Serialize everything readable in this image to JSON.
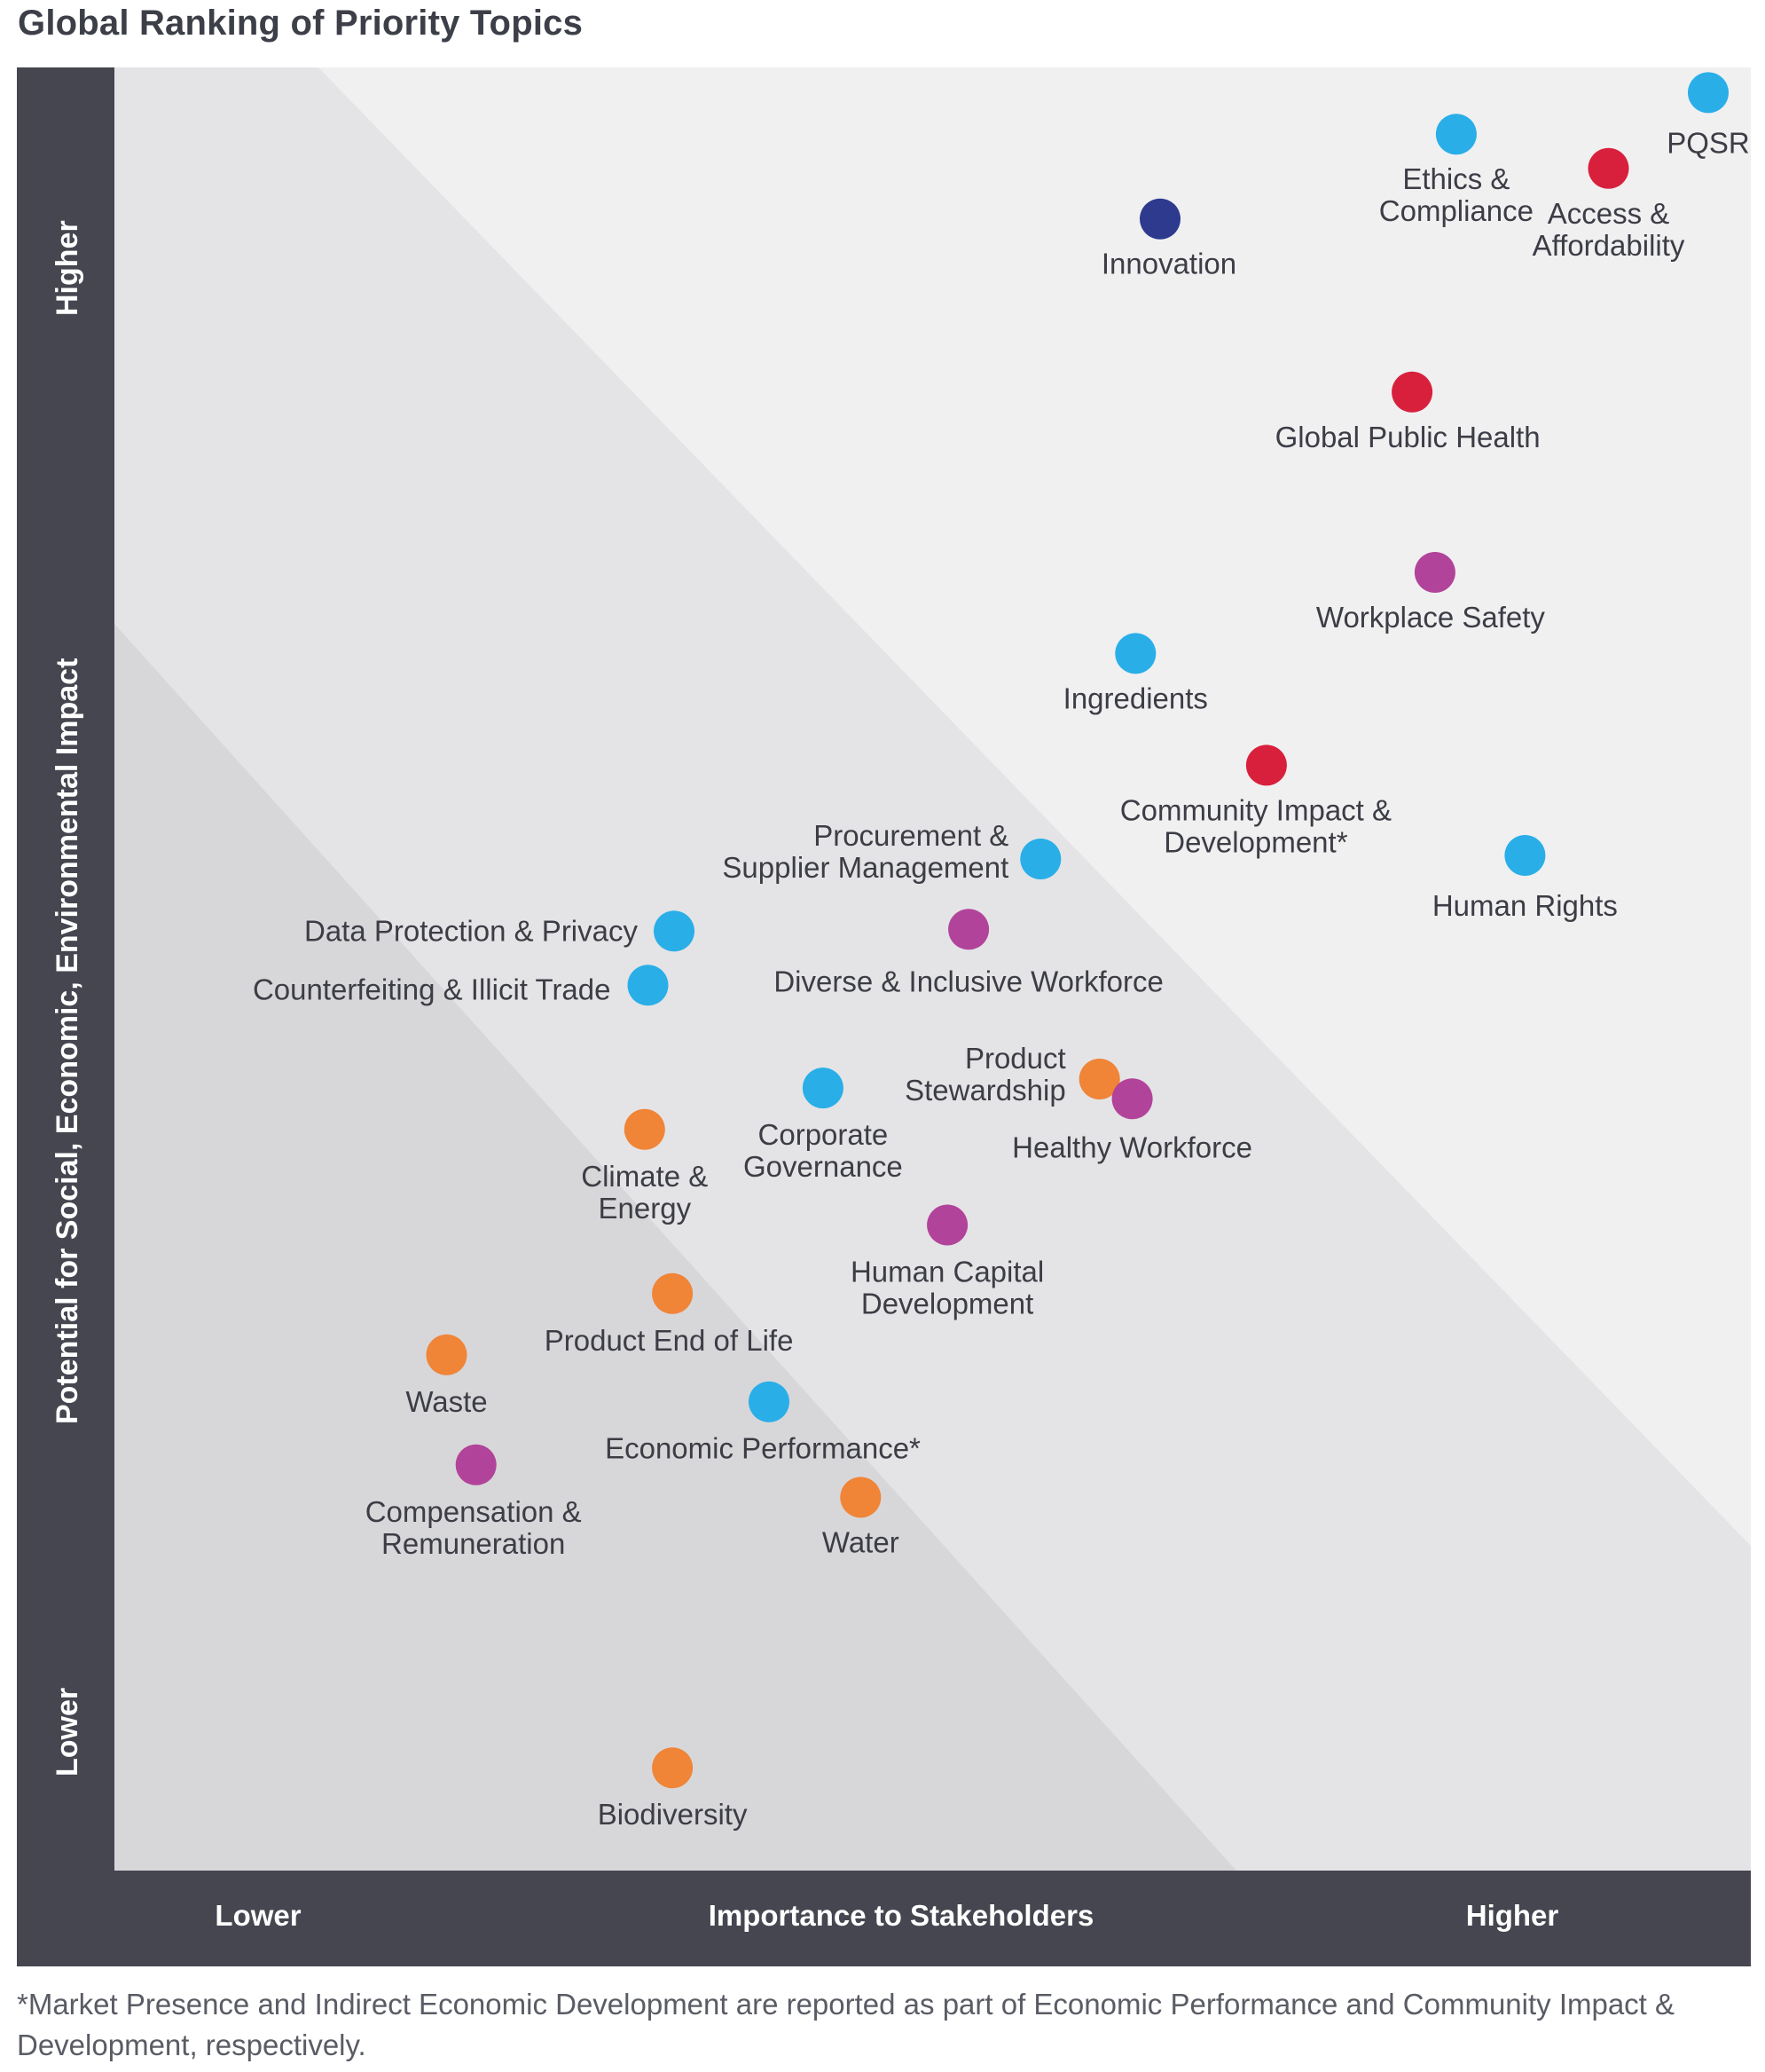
{
  "chart_data": {
    "type": "scatter",
    "title": "Global Ranking of Priority Topics",
    "xlabel": "Importance to Stakeholders",
    "ylabel": "Potential for Social, Economic, Environmental Impact",
    "x_low_label": "Lower",
    "x_high_label": "Higher",
    "y_low_label": "Lower",
    "y_high_label": "Higher",
    "xlim": [
      0,
      100
    ],
    "ylim": [
      0,
      100
    ],
    "grid": false,
    "colors": {
      "blue": "#29aee8",
      "red": "#d8203c",
      "navy": "#2d3a8e",
      "purple": "#b2439a",
      "orange": "#f08437",
      "zone_low": "#d7d7da",
      "zone_mid": "#e4e4e6",
      "zone_high": "#f0f0f1"
    },
    "points": [
      {
        "label": [
          "PQSR"
        ],
        "x": 97.4,
        "y": 98.6,
        "color": "blue",
        "anchor": "middle",
        "lx": 0,
        "ly": 68
      },
      {
        "label": [
          "Ethics &",
          "Compliance"
        ],
        "x": 82.0,
        "y": 96.3,
        "color": "blue",
        "anchor": "middle",
        "lx": 0,
        "ly": 62
      },
      {
        "label": [
          "Access &",
          "Affordability"
        ],
        "x": 91.3,
        "y": 94.4,
        "color": "red",
        "anchor": "middle",
        "lx": 0,
        "ly": 62
      },
      {
        "label": [
          "Innovation"
        ],
        "x": 63.9,
        "y": 91.6,
        "color": "navy",
        "anchor": "middle",
        "lx": 10,
        "ly": 62
      },
      {
        "label": [
          "Global Public Health"
        ],
        "x": 79.3,
        "y": 82.0,
        "color": "red",
        "anchor": "middle",
        "lx": -5,
        "ly": 62
      },
      {
        "label": [
          "Workplace Safety"
        ],
        "x": 80.7,
        "y": 72.0,
        "color": "purple",
        "anchor": "middle",
        "lx": -5,
        "ly": 62
      },
      {
        "label": [
          "Ingredients"
        ],
        "x": 62.4,
        "y": 67.5,
        "color": "blue",
        "anchor": "middle",
        "lx": 0,
        "ly": 62
      },
      {
        "label": [
          "Community Impact &",
          "Development*"
        ],
        "x": 70.4,
        "y": 61.3,
        "color": "red",
        "anchor": "middle",
        "lx": -12,
        "ly": 62
      },
      {
        "label": [
          "Human Rights"
        ],
        "x": 86.2,
        "y": 56.3,
        "color": "blue",
        "anchor": "middle",
        "lx": 0,
        "ly": 68
      },
      {
        "label": [
          "Procurement &",
          "Supplier Management"
        ],
        "x": 56.6,
        "y": 56.1,
        "color": "blue",
        "anchor": "end",
        "lx": -36,
        "ly": -15
      },
      {
        "label": [
          "Data Protection & Privacy"
        ],
        "x": 34.2,
        "y": 52.1,
        "color": "blue",
        "anchor": "end",
        "lx": -41,
        "ly": 11
      },
      {
        "label": [
          "Diverse & Inclusive Workforce"
        ],
        "x": 52.2,
        "y": 52.2,
        "color": "purple",
        "anchor": "middle",
        "lx": 0,
        "ly": 70
      },
      {
        "label": [
          "Counterfeiting & Illicit Trade"
        ],
        "x": 32.6,
        "y": 49.1,
        "color": "blue",
        "anchor": "end",
        "lx": -42,
        "ly": 16
      },
      {
        "label": [
          "Product",
          "Stewardship"
        ],
        "x": 60.2,
        "y": 43.9,
        "color": "orange",
        "anchor": "end",
        "lx": -38,
        "ly": -12
      },
      {
        "label": [
          "Healthy Workforce"
        ],
        "x": 62.2,
        "y": 42.8,
        "color": "purple",
        "anchor": "middle",
        "lx": 0,
        "ly": 66
      },
      {
        "label": [
          "Corporate",
          "Governance"
        ],
        "x": 43.3,
        "y": 43.4,
        "color": "blue",
        "anchor": "middle",
        "lx": 0,
        "ly": 64
      },
      {
        "label": [
          "Climate &",
          "Energy"
        ],
        "x": 32.4,
        "y": 41.1,
        "color": "orange",
        "anchor": "middle",
        "lx": 0,
        "ly": 64
      },
      {
        "label": [
          "Human Capital",
          "Development"
        ],
        "x": 50.9,
        "y": 35.8,
        "color": "purple",
        "anchor": "middle",
        "lx": 0,
        "ly": 64
      },
      {
        "label": [
          "Product End of Life"
        ],
        "x": 34.1,
        "y": 32.0,
        "color": "orange",
        "anchor": "middle",
        "lx": -4,
        "ly": 64
      },
      {
        "label": [
          "Waste"
        ],
        "x": 20.3,
        "y": 28.6,
        "color": "orange",
        "anchor": "middle",
        "lx": 0,
        "ly": 64
      },
      {
        "label": [
          "Economic Performance*"
        ],
        "x": 40.0,
        "y": 26.0,
        "color": "blue",
        "anchor": "middle",
        "lx": -7,
        "ly": 64
      },
      {
        "label": [
          "Compensation &",
          "Remuneration"
        ],
        "x": 22.1,
        "y": 22.5,
        "color": "purple",
        "anchor": "middle",
        "lx": -3,
        "ly": 64
      },
      {
        "label": [
          "Water"
        ],
        "x": 45.6,
        "y": 20.7,
        "color": "orange",
        "anchor": "middle",
        "lx": 0,
        "ly": 62
      },
      {
        "label": [
          "Biodiversity"
        ],
        "x": 34.1,
        "y": 5.7,
        "color": "orange",
        "anchor": "middle",
        "lx": 0,
        "ly": 64
      }
    ]
  },
  "footnote": "*Market Presence and Indirect Economic Development are reported as part of Economic Performance and Community Impact & Development, respectively."
}
